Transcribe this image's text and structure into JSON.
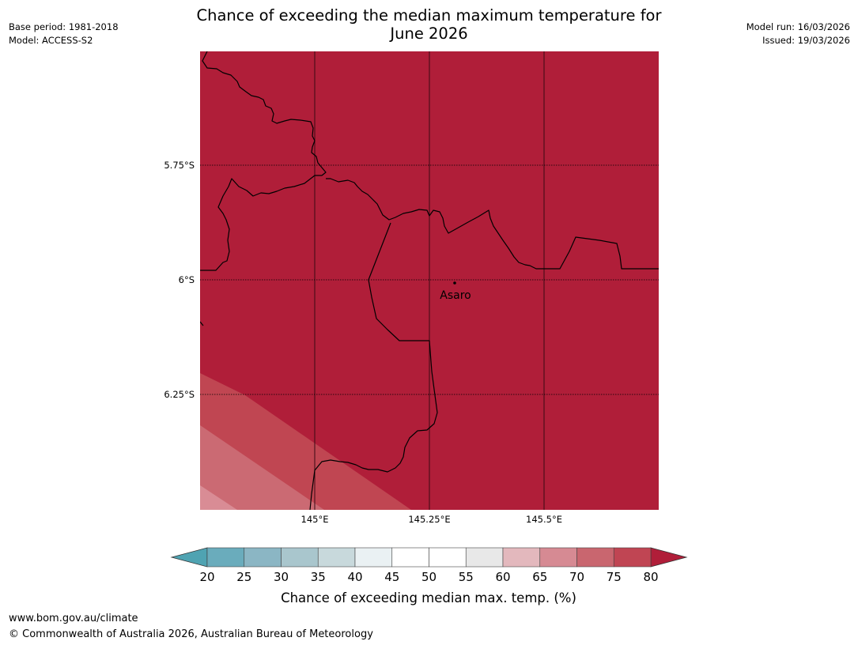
{
  "title": {
    "line1": "Chance of exceeding the median maximum temperature for",
    "line2": "June 2026"
  },
  "meta_left": {
    "base_period": "Base period: 1981-2018",
    "model": "Model: ACCESS-S2"
  },
  "meta_right": {
    "model_run": "Model run: 16/03/2026",
    "issued": "Issued: 19/03/2026"
  },
  "map": {
    "lat_labels": [
      "5.75°S",
      "6°S",
      "6.25°S"
    ],
    "lon_labels": [
      "145°E",
      "145.25°E",
      "145.5°E"
    ],
    "place": {
      "name": "Asaro"
    },
    "colors": {
      "band_80": "#b01e39",
      "band_75": "#c04652",
      "band_70": "#cb6a73",
      "band_65": "#d98c95"
    }
  },
  "colorbar": {
    "title": "Chance of exceeding median max. temp. (%)",
    "ticks": [
      "20",
      "25",
      "30",
      "35",
      "40",
      "45",
      "50",
      "55",
      "60",
      "65",
      "70",
      "75",
      "80"
    ],
    "colors": [
      "#6aacbc",
      "#8bb6c4",
      "#a9c6cd",
      "#c8d9dc",
      "#eaf1f3",
      "#ffffff",
      "#ffffff",
      "#e8e8e8",
      "#e3b8bd",
      "#d68a93",
      "#c9666f",
      "#c04553"
    ],
    "under_color": "#4fa3b2",
    "over_color": "#b01e39"
  },
  "footer": {
    "url": "www.bom.gov.au/climate",
    "copyright": "© Commonwealth of Australia 2026, Australian Bureau of Meteorology"
  }
}
